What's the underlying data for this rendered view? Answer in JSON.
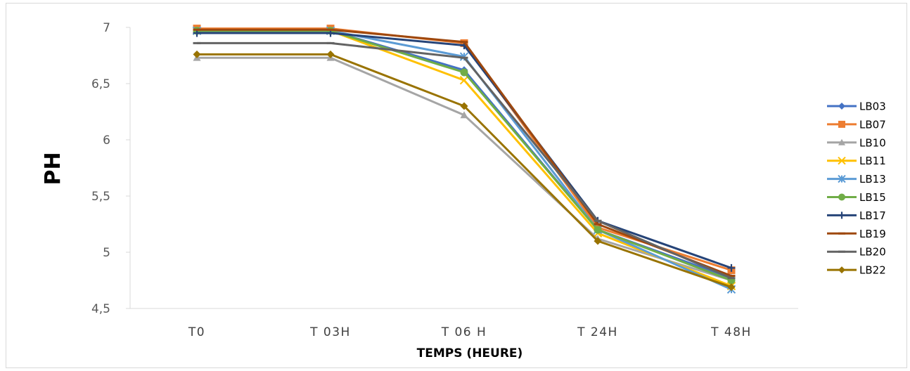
{
  "chart_data": {
    "type": "line",
    "title": "",
    "xlabel": "TEMPS (HEURE)",
    "ylabel": "PH",
    "categories": [
      "T0",
      "T 03H",
      "T 06  H",
      "T 24H",
      "T 48H"
    ],
    "ylim": [
      4.5,
      7
    ],
    "yticks": [
      "4,5",
      "5",
      "5,5",
      "6",
      "6,5",
      "7"
    ],
    "ytick_values": [
      4.5,
      5,
      5.5,
      6,
      6.5,
      7
    ],
    "grid": false,
    "legend_position": "right",
    "series": [
      {
        "name": "LB03",
        "color": "#4472c4",
        "marker": "diamond",
        "values": [
          6.97,
          6.97,
          6.62,
          5.2,
          4.77
        ]
      },
      {
        "name": "LB07",
        "color": "#ed7d31",
        "marker": "square",
        "values": [
          6.99,
          6.99,
          6.86,
          5.22,
          4.84
        ]
      },
      {
        "name": "LB10",
        "color": "#a5a5a5",
        "marker": "triangle",
        "values": [
          6.73,
          6.73,
          6.22,
          5.12,
          4.75
        ]
      },
      {
        "name": "LB11",
        "color": "#ffc000",
        "marker": "x",
        "values": [
          6.97,
          6.97,
          6.53,
          5.17,
          4.7
        ]
      },
      {
        "name": "LB13",
        "color": "#5b9bd5",
        "marker": "star",
        "values": [
          6.97,
          6.97,
          6.74,
          5.2,
          4.67
        ]
      },
      {
        "name": "LB15",
        "color": "#70ad47",
        "marker": "circle",
        "values": [
          6.97,
          6.97,
          6.6,
          5.2,
          4.75
        ]
      },
      {
        "name": "LB17",
        "color": "#264478",
        "marker": "plus",
        "values": [
          6.95,
          6.95,
          6.84,
          5.28,
          4.86
        ]
      },
      {
        "name": "LB19",
        "color": "#9e480e",
        "marker": "dash",
        "values": [
          6.98,
          6.98,
          6.87,
          5.25,
          4.79
        ]
      },
      {
        "name": "LB20",
        "color": "#636363",
        "marker": "dash",
        "values": [
          6.86,
          6.86,
          6.73,
          5.28,
          4.77
        ]
      },
      {
        "name": "LB22",
        "color": "#997300",
        "marker": "diamond",
        "values": [
          6.76,
          6.76,
          6.3,
          5.1,
          4.69
        ]
      }
    ]
  }
}
